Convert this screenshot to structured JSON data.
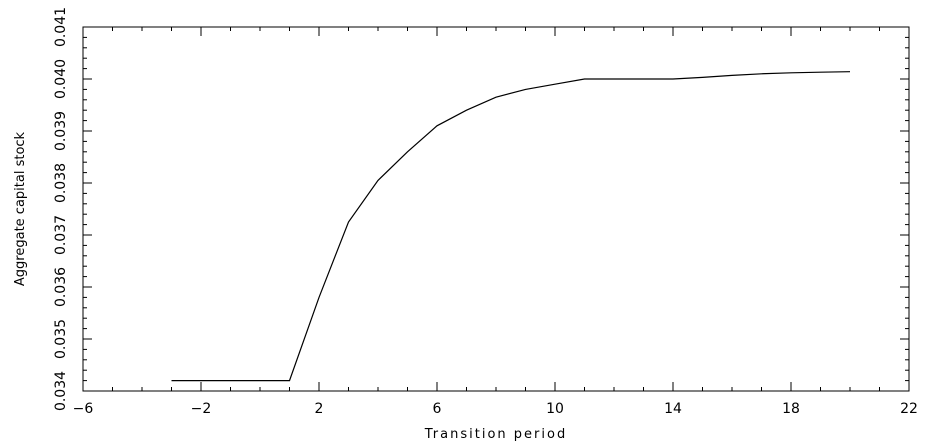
{
  "chart_data": {
    "type": "line",
    "xlabel": "Transition period",
    "ylabel": "Aggregate capital stock",
    "xlim": [
      -6,
      22
    ],
    "ylim": [
      0.034,
      0.041
    ],
    "xticks": [
      -6,
      -2,
      2,
      6,
      10,
      14,
      18,
      22
    ],
    "xtick_labels": [
      "−6",
      "−2",
      "2",
      "6",
      "10",
      "14",
      "18",
      "22"
    ],
    "yticks": [
      0.034,
      0.035,
      0.036,
      0.037,
      0.038,
      0.039,
      0.04,
      0.041
    ],
    "ytick_labels": [
      "0.034",
      "0.035",
      "0.036",
      "0.037",
      "0.038",
      "0.039",
      "0.040",
      "0.041"
    ],
    "grid": false,
    "series": [
      {
        "color": "#000000",
        "x": [
          -3,
          1,
          2,
          3,
          4,
          5,
          6,
          7,
          8,
          9,
          10,
          11,
          12,
          13,
          14,
          15,
          16,
          17,
          18,
          19,
          20
        ],
        "y": [
          0.0342,
          0.0342,
          0.0358,
          0.03725,
          0.03805,
          0.0386,
          0.0391,
          0.0394,
          0.03965,
          0.0398,
          0.0399,
          0.04,
          0.04,
          0.04,
          0.04,
          0.04003,
          0.04007,
          0.0401,
          0.04012,
          0.04013,
          0.04014
        ]
      }
    ]
  }
}
